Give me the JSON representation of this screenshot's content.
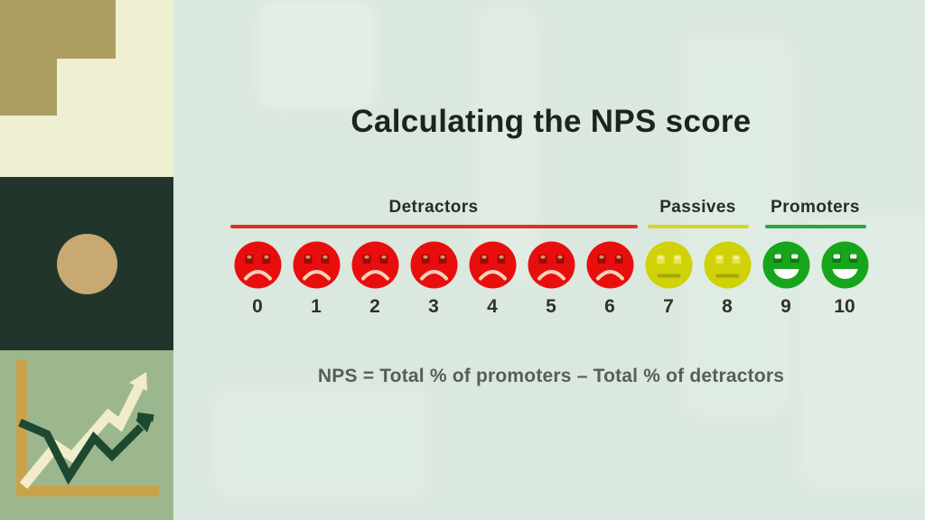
{
  "title": "Calculating the NPS score",
  "formula": "NPS = Total % of promoters – Total % of detractors",
  "scale": {
    "groups": [
      {
        "label": "Detractors",
        "mood": "sad",
        "line_color": "#e1311f",
        "face_color": "#e90e0e",
        "scores": [
          "0",
          "1",
          "2",
          "3",
          "4",
          "5",
          "6"
        ]
      },
      {
        "label": "Passives",
        "mood": "neutral",
        "line_color": "#d5d526",
        "face_color": "#d0d106",
        "scores": [
          "7",
          "8"
        ]
      },
      {
        "label": "Promoters",
        "mood": "happy",
        "line_color": "#2da63a",
        "face_color": "#17a51b",
        "scores": [
          "9",
          "10"
        ]
      }
    ]
  },
  "colors": {
    "main_bg": "#dbe8e0",
    "blob": "#e6f1e9",
    "title": "#1c241c",
    "label": "#252e24",
    "number": "#2c332c",
    "formula": "#565e57"
  },
  "decor": {
    "left_rail": {
      "panel_bg": "#eef0d1",
      "stairs_color": "#ac9e61",
      "square_bg": "#21352a",
      "circle_color": "#c8a971",
      "chart_bg": "#9cb78e",
      "axis_color": "#c9a24c",
      "trend_line_color": "#f1ecca",
      "zigzag_line_color": "#1d4930"
    }
  }
}
